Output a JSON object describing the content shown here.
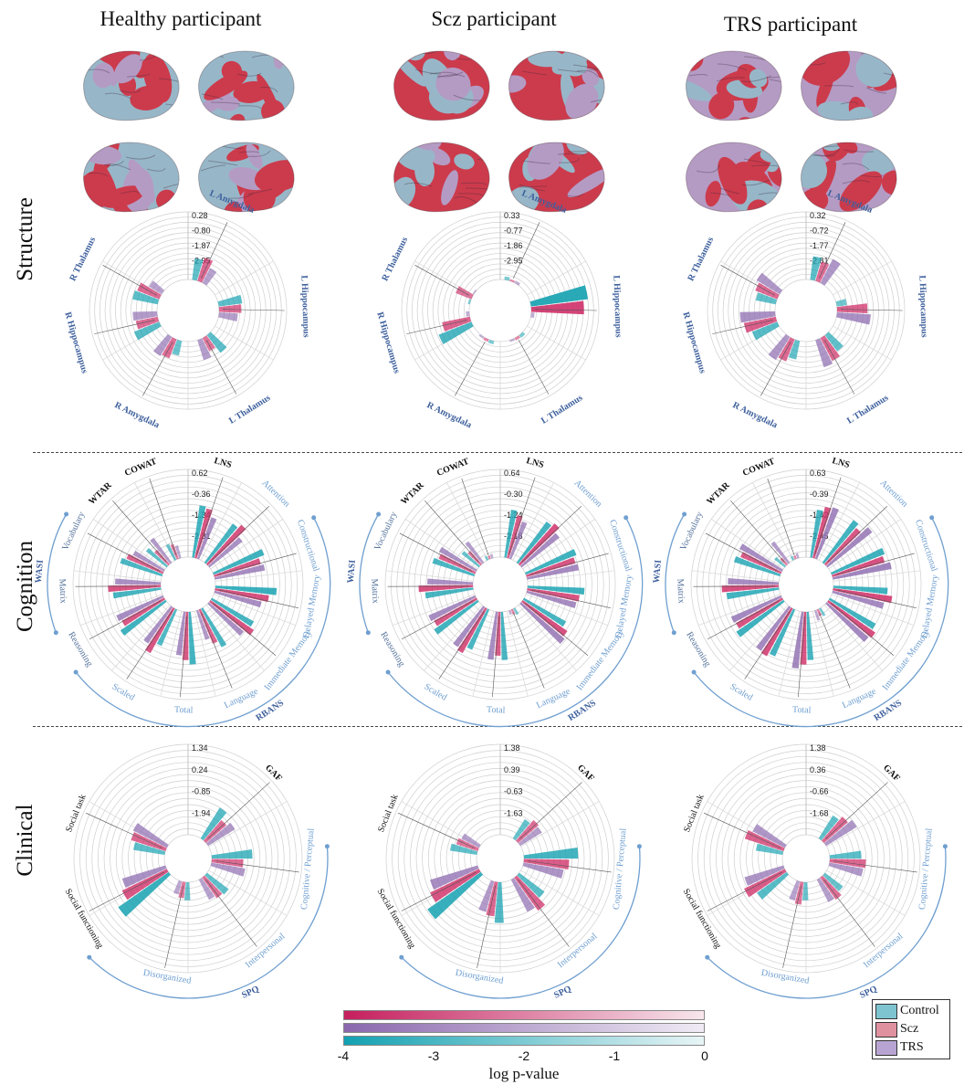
{
  "columns": [
    "Healthy participant",
    "Scz participant",
    "TRS participant"
  ],
  "rows": [
    "Structure",
    "Cognition",
    "Clinical"
  ],
  "colors": {
    "control": "#1aa3b2",
    "scz": "#cf2f68",
    "trs": "#9272b3",
    "brain_red": "#cc3b4c",
    "brain_blue": "#97b7c8",
    "brain_purple": "#b49bc4",
    "label_blue": "#3d5f9c",
    "arc_blue": "#6f9fd0"
  },
  "colorbar": {
    "ticks": [
      "-4",
      "-3",
      "-2",
      "-1",
      "0"
    ],
    "label": "log p-value"
  },
  "legend": [
    {
      "label": "Control",
      "color": "#7ec4d0"
    },
    {
      "label": "Scz",
      "color": "#e0919f"
    },
    {
      "label": "TRS",
      "color": "#b8a4d2"
    }
  ],
  "chart_data": [
    {
      "type": "polar-bar",
      "row": "Structure",
      "column": "Healthy participant",
      "ticks": [
        "0.28",
        "-0.80",
        "-1.87",
        "-2.95"
      ],
      "labels": [
        "L Amygdala",
        "L Hippocampus",
        "L Thalamus",
        "R Amygdala",
        "R Hippocampus",
        "R Thalamus"
      ],
      "series": [
        {
          "name": "Control",
          "values": [
            0.32,
            0.35,
            0.33,
            0.22,
            0.4,
            0.38
          ]
        },
        {
          "name": "Scz",
          "values": [
            0.36,
            0.33,
            0.22,
            0.3,
            0.33,
            0.35
          ]
        },
        {
          "name": "TRS",
          "values": [
            0.25,
            0.28,
            0.31,
            0.33,
            0.36,
            0.22
          ]
        }
      ]
    },
    {
      "type": "polar-bar",
      "row": "Structure",
      "column": "Scz participant",
      "ticks": [
        "0.33",
        "-0.77",
        "-1.86",
        "-2.95"
      ],
      "labels": [
        "L Amygdala",
        "L Hippocampus",
        "L Thalamus",
        "R Amygdala",
        "R Hippocampus",
        "R Thalamus"
      ],
      "series": [
        {
          "name": "Control",
          "values": [
            0.05,
            0.85,
            0.05,
            0.05,
            0.52,
            0.03
          ]
        },
        {
          "name": "Scz",
          "values": [
            0.03,
            0.78,
            0.04,
            0.04,
            0.42,
            0.25
          ]
        },
        {
          "name": "TRS",
          "values": [
            0.04,
            0.05,
            0.03,
            0.03,
            0.05,
            0.02
          ]
        }
      ]
    },
    {
      "type": "polar-bar",
      "row": "Structure",
      "column": "TRS participant",
      "ticks": [
        "0.32",
        "-0.72",
        "-1.77",
        "-2.81"
      ],
      "labels": [
        "L Amygdala",
        "L Hippocampus",
        "L Thalamus",
        "R Amygdala",
        "R Hippocampus",
        "R Thalamus"
      ],
      "series": [
        {
          "name": "Control",
          "values": [
            0.35,
            0.15,
            0.3,
            0.28,
            0.4,
            0.3
          ]
        },
        {
          "name": "Scz",
          "values": [
            0.3,
            0.45,
            0.38,
            0.35,
            0.48,
            0.35
          ]
        },
        {
          "name": "TRS",
          "values": [
            0.4,
            0.5,
            0.42,
            0.4,
            0.52,
            0.4
          ]
        }
      ]
    },
    {
      "type": "polar-bar",
      "row": "Cognition",
      "column": "Healthy participant",
      "ticks": [
        "0.62",
        "-0.36",
        "-1.34",
        "-2.31"
      ],
      "labels": [
        "LNS",
        "Attention",
        "Constructional",
        "Delayed Memory",
        "Immediate Memory",
        "Language",
        "Total",
        "Scaled",
        "Reasoning",
        "Matrix",
        "Vocabulary",
        "WTAR",
        "COWAT"
      ],
      "group_labels": [
        "RBANS",
        "WASI"
      ],
      "series": [
        {
          "name": "Control",
          "values": [
            0.6,
            0.55,
            0.62,
            0.7,
            0.55,
            0.5,
            0.6,
            0.45,
            0.62,
            0.55,
            0.5,
            0.3,
            0.2
          ]
        },
        {
          "name": "Scz",
          "values": [
            0.58,
            0.6,
            0.55,
            0.62,
            0.6,
            0.42,
            0.55,
            0.58,
            0.55,
            0.6,
            0.45,
            0.22,
            0.18
          ]
        },
        {
          "name": "TRS",
          "values": [
            0.5,
            0.48,
            0.58,
            0.55,
            0.52,
            0.35,
            0.5,
            0.5,
            0.58,
            0.52,
            0.4,
            0.35,
            0.15
          ]
        }
      ]
    },
    {
      "type": "polar-bar",
      "row": "Cognition",
      "column": "Scz participant",
      "ticks": [
        "0.64",
        "-0.30",
        "-1.24",
        "-2.18"
      ],
      "labels": [
        "LNS",
        "Attention",
        "Constructional",
        "Delayed Memory",
        "Immediate Memory",
        "Language",
        "Total",
        "Scaled",
        "Reasoning",
        "Matrix",
        "Vocabulary",
        "WTAR",
        "COWAT"
      ],
      "group_labels": [
        "RBANS",
        "WASI"
      ],
      "series": [
        {
          "name": "Control",
          "values": [
            0.55,
            0.58,
            0.62,
            0.65,
            0.55,
            0.08,
            0.55,
            0.5,
            0.6,
            0.55,
            0.5,
            0.25,
            0.05
          ]
        },
        {
          "name": "Scz",
          "values": [
            0.5,
            0.62,
            0.58,
            0.6,
            0.62,
            0.06,
            0.5,
            0.58,
            0.55,
            0.62,
            0.45,
            0.2,
            0.04
          ]
        },
        {
          "name": "TRS",
          "values": [
            0.45,
            0.55,
            0.6,
            0.58,
            0.65,
            0.05,
            0.55,
            0.55,
            0.58,
            0.52,
            0.48,
            0.3,
            0.05
          ]
        }
      ]
    },
    {
      "type": "polar-bar",
      "row": "Cognition",
      "column": "TRS participant",
      "ticks": [
        "0.63",
        "-0.39",
        "-1.42",
        "-2.45"
      ],
      "labels": [
        "LNS",
        "Attention",
        "Constructional",
        "Delayed Memory",
        "Immediate Memory",
        "Language",
        "Total",
        "Scaled",
        "Reasoning",
        "Matrix",
        "Vocabulary",
        "WTAR",
        "COWAT"
      ],
      "group_labels": [
        "RBANS",
        "WASI"
      ],
      "series": [
        {
          "name": "Control",
          "values": [
            0.55,
            0.6,
            0.65,
            0.62,
            0.6,
            0.1,
            0.55,
            0.58,
            0.65,
            0.6,
            0.55,
            0.15,
            0.05
          ]
        },
        {
          "name": "Scz",
          "values": [
            0.6,
            0.55,
            0.62,
            0.68,
            0.65,
            0.08,
            0.6,
            0.62,
            0.6,
            0.65,
            0.5,
            0.1,
            0.04
          ]
        },
        {
          "name": "TRS",
          "values": [
            0.62,
            0.65,
            0.68,
            0.6,
            0.62,
            0.12,
            0.65,
            0.6,
            0.62,
            0.58,
            0.55,
            0.3,
            0.06
          ]
        }
      ]
    },
    {
      "type": "polar-bar",
      "row": "Clinical",
      "column": "Healthy participant",
      "ticks": [
        "1.34",
        "0.24",
        "-0.85",
        "-1.94"
      ],
      "labels": [
        "GAF",
        "Cognitive / Perceptual",
        "Interpersonal",
        "Disorganized",
        "Social functioning",
        "Social task"
      ],
      "group_labels": [
        "SPQ"
      ],
      "series": [
        {
          "name": "Control",
          "values": [
            0.4,
            0.45,
            0.3,
            0.2,
            0.68,
            0.35
          ]
        },
        {
          "name": "Scz",
          "values": [
            0.3,
            0.35,
            0.28,
            0.18,
            0.55,
            0.4
          ]
        },
        {
          "name": "TRS",
          "values": [
            0.35,
            0.38,
            0.25,
            0.15,
            0.5,
            0.42
          ]
        }
      ]
    },
    {
      "type": "polar-bar",
      "row": "Clinical",
      "column": "Scz participant",
      "ticks": [
        "1.38",
        "0.39",
        "-0.63",
        "-1.63"
      ],
      "labels": [
        "GAF",
        "Cognitive / Perceptual",
        "Interpersonal",
        "Disorganized",
        "Social functioning",
        "Social task"
      ],
      "group_labels": [
        "SPQ"
      ],
      "series": [
        {
          "name": "Control",
          "values": [
            0.25,
            0.6,
            0.35,
            0.45,
            0.72,
            0.3
          ]
        },
        {
          "name": "Scz",
          "values": [
            0.3,
            0.5,
            0.45,
            0.38,
            0.6,
            0.25
          ]
        },
        {
          "name": "TRS",
          "values": [
            0.28,
            0.45,
            0.4,
            0.35,
            0.55,
            0.22
          ]
        }
      ]
    },
    {
      "type": "polar-bar",
      "row": "Clinical",
      "column": "TRS participant",
      "ticks": [
        "1.38",
        "0.36",
        "-0.66",
        "-1.68"
      ],
      "labels": [
        "GAF",
        "Cognitive / Perceptual",
        "Interpersonal",
        "Disorganized",
        "Social functioning",
        "Social task"
      ],
      "group_labels": [
        "SPQ"
      ],
      "series": [
        {
          "name": "Control",
          "values": [
            0.3,
            0.35,
            0.25,
            0.2,
            0.4,
            0.3
          ]
        },
        {
          "name": "Scz",
          "values": [
            0.35,
            0.4,
            0.3,
            0.25,
            0.5,
            0.45
          ]
        },
        {
          "name": "TRS",
          "values": [
            0.4,
            0.38,
            0.28,
            0.22,
            0.45,
            0.4
          ]
        }
      ]
    }
  ]
}
